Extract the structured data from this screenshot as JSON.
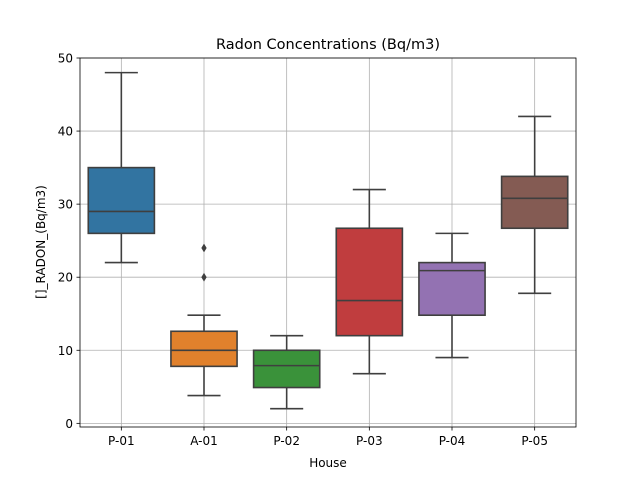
{
  "chart_data": {
    "type": "box",
    "title": "Radon Concentrations (Bq/m3)",
    "xlabel": "House",
    "ylabel": "[]_RADON_(Bq/m3)",
    "categories": [
      "P-01",
      "A-01",
      "P-02",
      "P-03",
      "P-04",
      "P-05"
    ],
    "ylim": [
      -0.5,
      50
    ],
    "yticks": [
      0,
      10,
      20,
      30,
      40,
      50
    ],
    "grid": true,
    "boxes": [
      {
        "category": "P-01",
        "whisker_low": 22,
        "q1": 26,
        "median": 29,
        "q3": 35,
        "whisker_high": 48,
        "outliers": [],
        "color": "#3274a1"
      },
      {
        "category": "A-01",
        "whisker_low": 3.8,
        "q1": 7.8,
        "median": 10,
        "q3": 12.6,
        "whisker_high": 14.8,
        "outliers": [
          20,
          24
        ],
        "color": "#e1812c"
      },
      {
        "category": "P-02",
        "whisker_low": 2,
        "q1": 4.9,
        "median": 7.9,
        "q3": 10,
        "whisker_high": 12,
        "outliers": [],
        "color": "#3a923a"
      },
      {
        "category": "P-03",
        "whisker_low": 6.8,
        "q1": 12,
        "median": 16.8,
        "q3": 26.7,
        "whisker_high": 32,
        "outliers": [],
        "color": "#c03d3e"
      },
      {
        "category": "P-04",
        "whisker_low": 9,
        "q1": 14.8,
        "median": 20.9,
        "q3": 22,
        "whisker_high": 26,
        "outliers": [],
        "color": "#9372b2"
      },
      {
        "category": "P-05",
        "whisker_low": 17.8,
        "q1": 26.7,
        "median": 30.8,
        "q3": 33.8,
        "whisker_high": 42,
        "outliers": [],
        "color": "#845b53"
      }
    ]
  }
}
